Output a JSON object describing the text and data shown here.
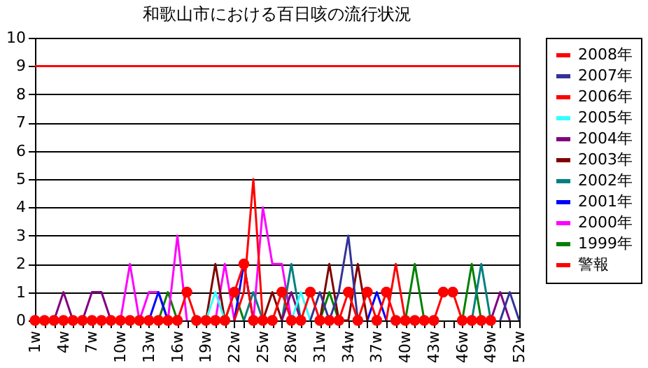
{
  "chart_data": {
    "type": "line",
    "title": "和歌山市における百日咳の流行状況",
    "categories": [
      "1w",
      null,
      null,
      "4w",
      null,
      null,
      "7w",
      null,
      null,
      "10w",
      null,
      null,
      "13w",
      null,
      null,
      "16w",
      null,
      null,
      "19w",
      null,
      null,
      "22w",
      null,
      null,
      "25w",
      null,
      null,
      "28w",
      null,
      null,
      "31w",
      null,
      null,
      "34w",
      null,
      null,
      "37w",
      null,
      null,
      "40w",
      null,
      null,
      "43w",
      null,
      null,
      "46w",
      null,
      null,
      "49w",
      null,
      null,
      "52w"
    ],
    "ylim": [
      0,
      10
    ],
    "yticks": [
      0,
      1,
      2,
      3,
      4,
      5,
      6,
      7,
      8,
      9,
      10
    ],
    "grid": "y",
    "legend": "right",
    "series": [
      {
        "name": "2008年",
        "color": "#ff0000",
        "marker": "circle",
        "values": [
          0,
          0,
          0,
          0,
          0,
          0,
          0,
          0,
          0,
          0,
          0,
          0,
          0,
          0,
          0,
          0,
          1,
          0,
          0,
          0,
          0,
          1,
          2,
          0,
          0,
          0,
          1,
          0,
          0,
          1,
          0,
          0,
          0,
          1,
          0,
          1,
          0,
          1,
          0,
          0,
          0,
          0,
          0,
          1,
          1,
          0,
          0,
          0,
          0,
          null,
          null,
          null
        ]
      },
      {
        "name": "2007年",
        "color": "#333399",
        "values": [
          null,
          null,
          null,
          null,
          null,
          null,
          null,
          null,
          null,
          null,
          null,
          null,
          null,
          null,
          null,
          null,
          null,
          null,
          null,
          null,
          null,
          null,
          null,
          null,
          null,
          null,
          null,
          null,
          null,
          0,
          1,
          0,
          1,
          3,
          0,
          null,
          null,
          null,
          null,
          null,
          null,
          null,
          null,
          null,
          null,
          null,
          null,
          null,
          null,
          0,
          1,
          0
        ]
      },
      {
        "name": "2006年",
        "color": "#ff0000",
        "values": [
          null,
          null,
          null,
          null,
          null,
          null,
          null,
          null,
          null,
          null,
          null,
          null,
          null,
          null,
          null,
          null,
          null,
          null,
          null,
          null,
          null,
          0,
          1,
          5,
          0,
          null,
          null,
          null,
          null,
          null,
          null,
          null,
          null,
          null,
          null,
          null,
          null,
          0,
          2,
          0,
          null,
          null,
          null,
          null,
          null,
          null,
          null,
          null,
          null,
          null,
          null,
          null
        ]
      },
      {
        "name": "2005年",
        "color": "#33ffff",
        "values": [
          null,
          null,
          null,
          null,
          null,
          null,
          null,
          null,
          null,
          null,
          null,
          null,
          null,
          null,
          null,
          null,
          null,
          null,
          0,
          1,
          0,
          null,
          null,
          null,
          null,
          null,
          null,
          0,
          1,
          0,
          null,
          null,
          null,
          null,
          null,
          null,
          null,
          null,
          null,
          null,
          null,
          null,
          null,
          null,
          null,
          null,
          null,
          null,
          null,
          null,
          null,
          null
        ]
      },
      {
        "name": "2004年",
        "color": "#800080",
        "values": [
          null,
          null,
          0,
          1,
          0,
          0,
          1,
          1,
          0,
          null,
          null,
          null,
          null,
          null,
          null,
          null,
          null,
          null,
          null,
          null,
          null,
          null,
          null,
          null,
          null,
          null,
          0,
          1,
          0,
          null,
          null,
          null,
          null,
          null,
          null,
          null,
          null,
          null,
          null,
          null,
          null,
          null,
          null,
          null,
          null,
          null,
          null,
          null,
          0,
          1,
          0,
          null
        ]
      },
      {
        "name": "2003年",
        "color": "#800000",
        "values": [
          null,
          null,
          null,
          null,
          null,
          null,
          null,
          null,
          null,
          null,
          null,
          null,
          null,
          null,
          null,
          null,
          null,
          null,
          0,
          2,
          0,
          null,
          null,
          null,
          0,
          1,
          0,
          null,
          null,
          null,
          0,
          2,
          0,
          0,
          2,
          0,
          null,
          null,
          null,
          null,
          null,
          null,
          null,
          null,
          null,
          null,
          null,
          null,
          null,
          null,
          null,
          null
        ]
      },
      {
        "name": "2002年",
        "color": "#008080",
        "values": [
          null,
          null,
          null,
          null,
          null,
          null,
          null,
          null,
          null,
          null,
          null,
          null,
          null,
          null,
          null,
          null,
          null,
          null,
          null,
          null,
          null,
          null,
          0,
          1,
          0,
          null,
          0,
          2,
          0,
          null,
          null,
          null,
          null,
          null,
          null,
          null,
          null,
          null,
          null,
          null,
          null,
          null,
          null,
          null,
          null,
          null,
          0,
          2,
          0,
          null,
          null,
          null
        ]
      },
      {
        "name": "2001年",
        "color": "#0000ff",
        "values": [
          null,
          null,
          null,
          null,
          null,
          null,
          null,
          null,
          null,
          null,
          null,
          null,
          0,
          1,
          0,
          null,
          null,
          null,
          null,
          null,
          null,
          0,
          2,
          0,
          null,
          null,
          null,
          null,
          null,
          null,
          null,
          null,
          null,
          null,
          null,
          0,
          1,
          0,
          null,
          null,
          null,
          null,
          null,
          null,
          null,
          null,
          null,
          null,
          null,
          null,
          null,
          null
        ]
      },
      {
        "name": "2000年",
        "color": "#ff00ff",
        "values": [
          null,
          null,
          null,
          null,
          null,
          null,
          null,
          null,
          null,
          0,
          2,
          0,
          1,
          1,
          0,
          3,
          0,
          null,
          null,
          0,
          2,
          0,
          null,
          0,
          4,
          2,
          2,
          0,
          null,
          null,
          null,
          null,
          null,
          null,
          null,
          null,
          null,
          null,
          null,
          null,
          null,
          null,
          null,
          null,
          null,
          null,
          null,
          null,
          null,
          null,
          null,
          null
        ]
      },
      {
        "name": "1999年",
        "color": "#008000",
        "values": [
          null,
          null,
          null,
          null,
          null,
          null,
          null,
          null,
          null,
          null,
          null,
          null,
          null,
          0,
          1,
          0,
          null,
          null,
          null,
          null,
          0,
          1,
          0,
          null,
          null,
          null,
          null,
          null,
          null,
          null,
          0,
          1,
          0,
          null,
          null,
          null,
          null,
          null,
          null,
          0,
          2,
          0,
          null,
          null,
          null,
          0,
          2,
          0,
          null,
          null,
          null,
          null
        ]
      },
      {
        "name": "警報",
        "color": "#ff0000",
        "values": [
          9,
          9,
          9,
          9,
          9,
          9,
          9,
          9,
          9,
          9,
          9,
          9,
          9,
          9,
          9,
          9,
          9,
          9,
          9,
          9,
          9,
          9,
          9,
          9,
          9,
          9,
          9,
          9,
          9,
          9,
          9,
          9,
          9,
          9,
          9,
          9,
          9,
          9,
          9,
          9,
          9,
          9,
          9,
          9,
          9,
          9,
          9,
          9,
          9,
          9,
          9,
          9
        ]
      }
    ]
  }
}
